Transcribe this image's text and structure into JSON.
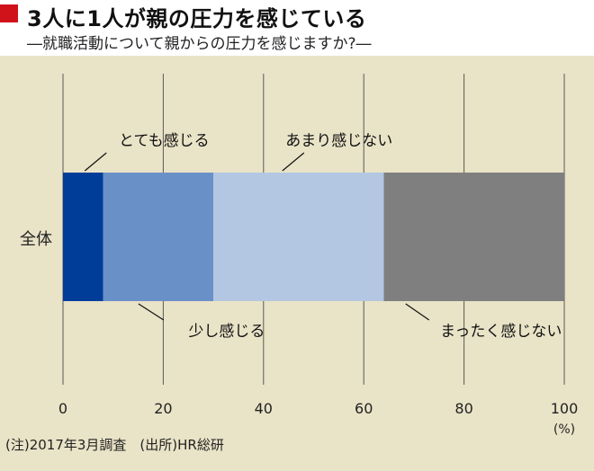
{
  "header": {
    "title": "3人に1人が親の圧力を感じている",
    "subtitle": "―就職活動について親からの圧力を感じますか?―"
  },
  "footer": {
    "note": "(注)2017年3月調査　(出所)HR総研"
  },
  "chart_data": {
    "type": "bar",
    "orientation": "horizontal",
    "stacked": true,
    "categories": [
      "全体"
    ],
    "series": [
      {
        "name": "とても感じる",
        "values": [
          8
        ],
        "color": "#003d99"
      },
      {
        "name": "少し感じる",
        "values": [
          22
        ],
        "color": "#6a90c8"
      },
      {
        "name": "あまり感じない",
        "values": [
          34
        ],
        "color": "#b3c7e2"
      },
      {
        "name": "まったく感じない",
        "values": [
          36
        ],
        "color": "#7f7f7f"
      }
    ],
    "xlim": [
      0,
      100
    ],
    "xticks": [
      "0",
      "20",
      "40",
      "60",
      "80",
      "100"
    ],
    "unit": "(%)",
    "grid": true
  }
}
